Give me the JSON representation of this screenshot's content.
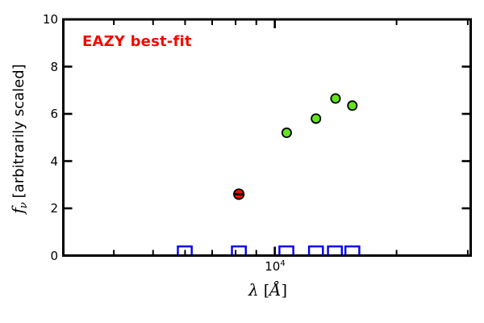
{
  "annotation": {
    "text": "EAZY best-fit"
  },
  "colors": {
    "accent_red": "#ee0d00",
    "marker_green": "#63e41c",
    "marker_blue": "#0000ee",
    "axis_black": "#000000"
  },
  "y_axis": {
    "label_f": "f",
    "label_sub": "ν",
    "label_rest": "[arbitrarily scaled]",
    "tick_labels": [
      "0",
      "2",
      "4",
      "6",
      "8",
      "10"
    ]
  },
  "x_axis": {
    "tick_base": "10",
    "tick_exp": "4",
    "label_lambda": "λ",
    "label_open": "[",
    "label_angstrom": "Å",
    "label_close": "]"
  },
  "chart_data": {
    "type": "scatter",
    "title": "",
    "xlabel": "λ [Å]",
    "ylabel": "f_ν [arbitrarily scaled]",
    "x_scale": "log",
    "xlim": [
      3000,
      30500
    ],
    "ylim": [
      0,
      10
    ],
    "grid": false,
    "legend": "none",
    "x_major_ticks": [
      10000
    ],
    "x_minor_ticks": [
      4000,
      5000,
      6000,
      7000,
      8000,
      9000,
      20000,
      30000
    ],
    "y_major_ticks": [
      0,
      2,
      4,
      6,
      8,
      10
    ],
    "annotation": {
      "text": "EAZY best-fit",
      "color": "#ee0d00"
    },
    "series": [
      {
        "name": "observed-photometry-squares",
        "marker": "open-square",
        "edge_color": "#0000ee",
        "points": [
          {
            "x": 5990,
            "y": 0
          },
          {
            "x": 8150,
            "y": 0
          },
          {
            "x": 10680,
            "y": 0
          },
          {
            "x": 12640,
            "y": 0
          },
          {
            "x": 14080,
            "y": 0
          },
          {
            "x": 15550,
            "y": 0
          }
        ]
      },
      {
        "name": "best-fit-flux-red",
        "marker": "circle-with-errorbar",
        "fill_color": "#ee0d00",
        "edge_color": "#000000",
        "points": [
          {
            "x": 8150,
            "y": 2.6
          }
        ]
      },
      {
        "name": "best-fit-flux-green",
        "marker": "circle",
        "fill_color": "#63e41c",
        "edge_color": "#000000",
        "points": [
          {
            "x": 10700,
            "y": 5.2
          },
          {
            "x": 12640,
            "y": 5.8
          },
          {
            "x": 14130,
            "y": 6.65
          },
          {
            "x": 15550,
            "y": 6.35
          }
        ]
      }
    ]
  }
}
